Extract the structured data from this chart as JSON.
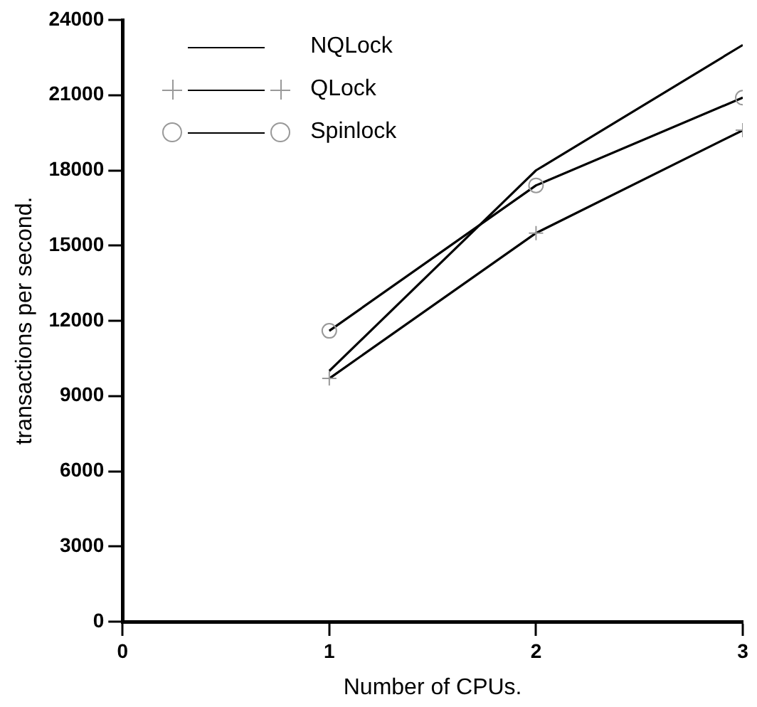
{
  "chart_data": {
    "type": "line",
    "xlabel": "Number of CPUs.",
    "ylabel": "transactions per second.",
    "x": [
      1,
      2,
      3
    ],
    "series": [
      {
        "name": "NQLock",
        "color": "#000000",
        "values": [
          10000,
          18000,
          23000
        ],
        "marker": "none"
      },
      {
        "name": "QLock",
        "color": "#000000",
        "values": [
          9700,
          15500,
          19600
        ],
        "marker": "cross"
      },
      {
        "name": "Spinlock",
        "color": "#000000",
        "values": [
          11600,
          17400,
          20900
        ],
        "marker": "circle"
      }
    ],
    "xlim": [
      0,
      3
    ],
    "xticks": [
      0,
      1,
      2,
      3
    ],
    "ylim": [
      0,
      24000
    ],
    "yticks": [
      0,
      3000,
      6000,
      9000,
      12000,
      15000,
      18000,
      21000,
      24000
    ],
    "grid": false,
    "legend": "top left",
    "line_style": "solid"
  }
}
